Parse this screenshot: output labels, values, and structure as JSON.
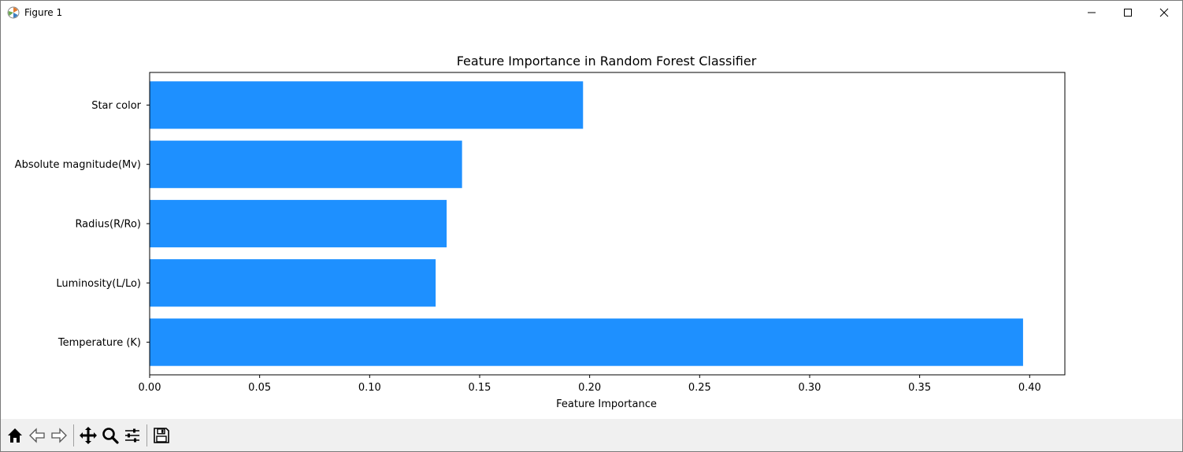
{
  "window": {
    "title": "Figure 1",
    "controls": [
      "minimize-icon",
      "maximize-icon",
      "close-icon"
    ]
  },
  "toolbar": {
    "buttons": [
      "home-icon",
      "back-icon",
      "forward-icon",
      "pan-icon",
      "zoom-icon",
      "configure-subplots-icon",
      "save-icon"
    ]
  },
  "chart_data": {
    "type": "bar",
    "orientation": "horizontal",
    "title": "Feature Importance in Random Forest Classifier",
    "xlabel": "Feature Importance",
    "ylabel": "",
    "categories": [
      "Temperature (K)",
      "Luminosity(L/Lo)",
      "Radius(R/Ro)",
      "Absolute magnitude(Mv)",
      "Star color"
    ],
    "values": [
      0.397,
      0.13,
      0.135,
      0.142,
      0.197
    ],
    "xlim": [
      0,
      0.416
    ],
    "xticks": [
      "0.00",
      "0.05",
      "0.10",
      "0.15",
      "0.20",
      "0.25",
      "0.30",
      "0.35",
      "0.40"
    ],
    "bar_color": "#1e90ff",
    "grid": false
  }
}
